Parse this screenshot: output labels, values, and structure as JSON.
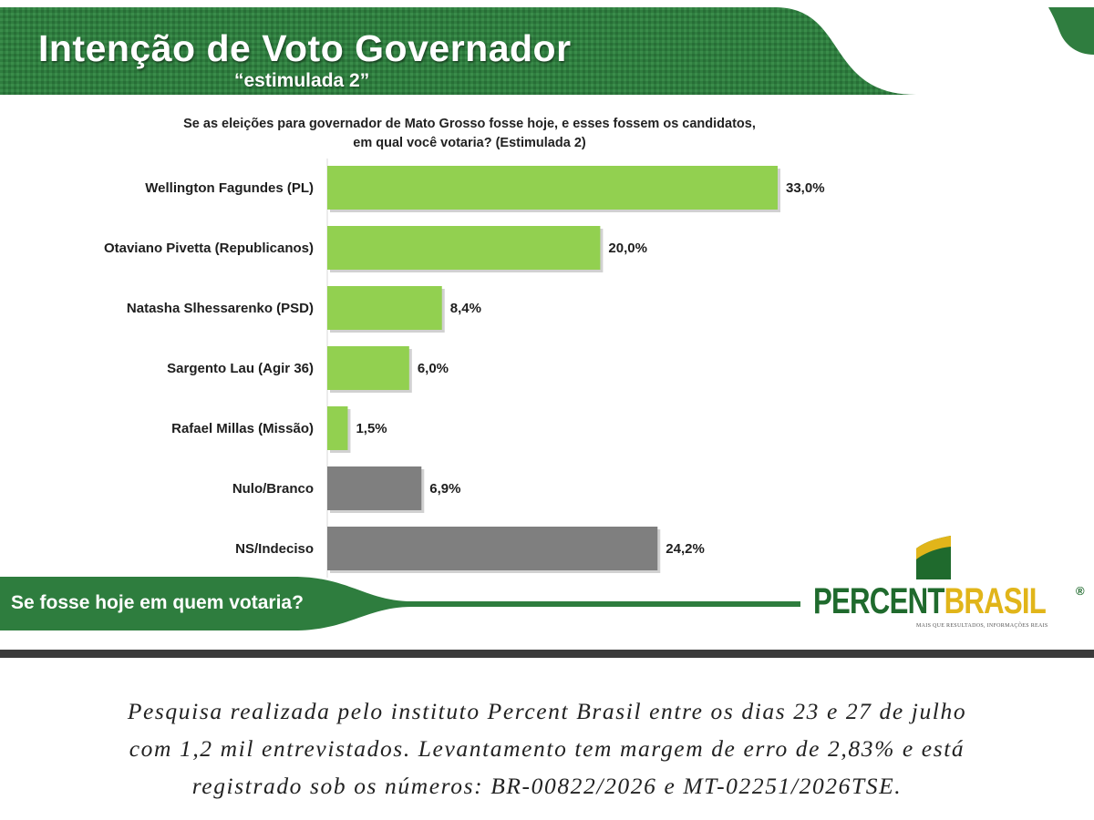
{
  "header": {
    "title": "Intenção de Voto Governador",
    "subtitle": "“estimulada 2”"
  },
  "question": {
    "line1": "Se as eleições para governador de Mato Grosso fosse hoje, e esses fossem os candidatos,",
    "line2": "em qual você votaria? (Estimulada 2)"
  },
  "chart_data": {
    "type": "bar",
    "orientation": "horizontal",
    "title": "",
    "xlabel": "",
    "ylabel": "",
    "xlim": [
      0,
      33
    ],
    "grid": false,
    "legend": "none",
    "categories": [
      "Wellington Fagundes (PL)",
      "Otaviano Pivetta (Republicanos)",
      "Natasha Slhessarenko (PSD)",
      "Sargento Lau (Agir 36)",
      "Rafael Millas (Missão)",
      "Nulo/Branco",
      "NS/Indeciso"
    ],
    "values": [
      33.0,
      20.0,
      8.4,
      6.0,
      1.5,
      6.9,
      24.2
    ],
    "value_labels": [
      "33,0%",
      "20,0%",
      "8,4%",
      "6,0%",
      "1,5%",
      "6,9%",
      "24,2%"
    ],
    "bar_colors": [
      "#92d050",
      "#92d050",
      "#92d050",
      "#92d050",
      "#92d050",
      "#7f7f7f",
      "#7f7f7f"
    ]
  },
  "footer": {
    "tagline": "Se fosse hoje em quem votaria?",
    "brand_part1": "PERCENT",
    "brand_part2": "BRASIL",
    "brand_reg": "®",
    "brand_slogan": "MAIS QUE RESULTADOS, INFORMAÇÕES REAIS"
  },
  "caption": {
    "line1": "Pesquisa realizada pelo instituto Percent Brasil entre os dias 23 e 27 de julho",
    "line2": "com 1,2 mil entrevistados. Levantamento tem margem de erro de 2,83% e está",
    "line3": "registrado sob os números: BR-00822/2026 e MT-02251/2026TSE."
  },
  "colors": {
    "brand_green": "#1f6a2d",
    "band_green": "#2e7d3e",
    "candidate_bar": "#92d050",
    "other_bar": "#7f7f7f",
    "brand_yellow": "#e1b51a"
  }
}
